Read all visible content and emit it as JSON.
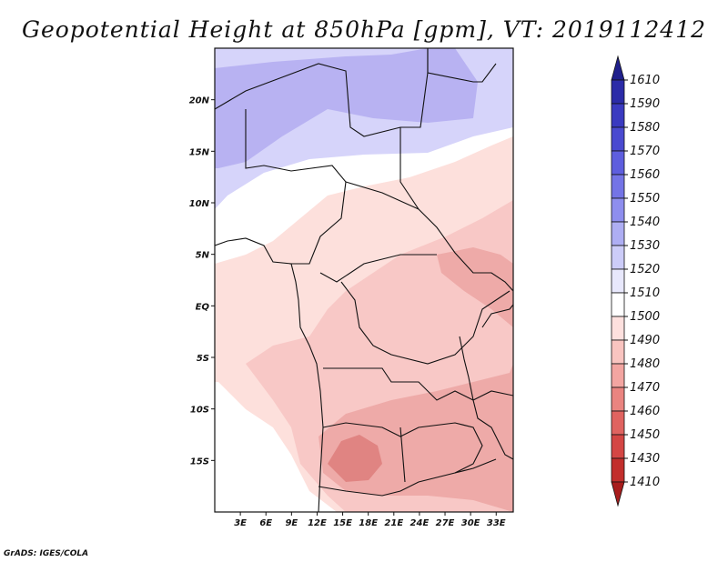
{
  "title": "Geopotential Height at 850hPa [gpm], VT: 2019112412",
  "credit": "GrADS: IGES/COLA",
  "map": {
    "lon_range": [
      0,
      35
    ],
    "lat_range": [
      -20,
      25
    ],
    "lon_ticks": [
      {
        "value": 3,
        "label": "3E"
      },
      {
        "value": 6,
        "label": "6E"
      },
      {
        "value": 9,
        "label": "9E"
      },
      {
        "value": 12,
        "label": "12E"
      },
      {
        "value": 15,
        "label": "15E"
      },
      {
        "value": 18,
        "label": "18E"
      },
      {
        "value": 21,
        "label": "21E"
      },
      {
        "value": 24,
        "label": "24E"
      },
      {
        "value": 27,
        "label": "27E"
      },
      {
        "value": 30,
        "label": "30E"
      },
      {
        "value": 33,
        "label": "33E"
      }
    ],
    "lat_ticks": [
      {
        "value": 20,
        "label": "20N"
      },
      {
        "value": 15,
        "label": "15N"
      },
      {
        "value": 10,
        "label": "10N"
      },
      {
        "value": 5,
        "label": "5N"
      },
      {
        "value": 0,
        "label": "EQ"
      },
      {
        "value": -5,
        "label": "5S"
      },
      {
        "value": -10,
        "label": "10S"
      },
      {
        "value": -15,
        "label": "15S"
      }
    ]
  },
  "colorbar": {
    "levels": [
      "1610",
      "1590",
      "1580",
      "1570",
      "1560",
      "1550",
      "1540",
      "1530",
      "1520",
      "1510",
      "1500",
      "1490",
      "1480",
      "1470",
      "1460",
      "1450",
      "1430",
      "1410"
    ],
    "colors": [
      "#20208c",
      "#2b2ba8",
      "#3a3ac0",
      "#4a4ad0",
      "#5e5ede",
      "#7474e6",
      "#8e8eee",
      "#aeaef3",
      "#ccccf8",
      "#e8e8fc",
      "#ffffff",
      "#fde0de",
      "#f9c4c0",
      "#f3a5a1",
      "#ea8480",
      "#e06360",
      "#d44644",
      "#c22e2c",
      "#a81d1d"
    ]
  },
  "field_colors": {
    "c1540": "#b8b2f2",
    "c1530": "#d6d4fa",
    "c1510": "#ffffff",
    "c1500": "#fde0dc",
    "c1490": "#f8c8c6",
    "c1480": "#eeaaa8",
    "c1470": "#e08482"
  }
}
